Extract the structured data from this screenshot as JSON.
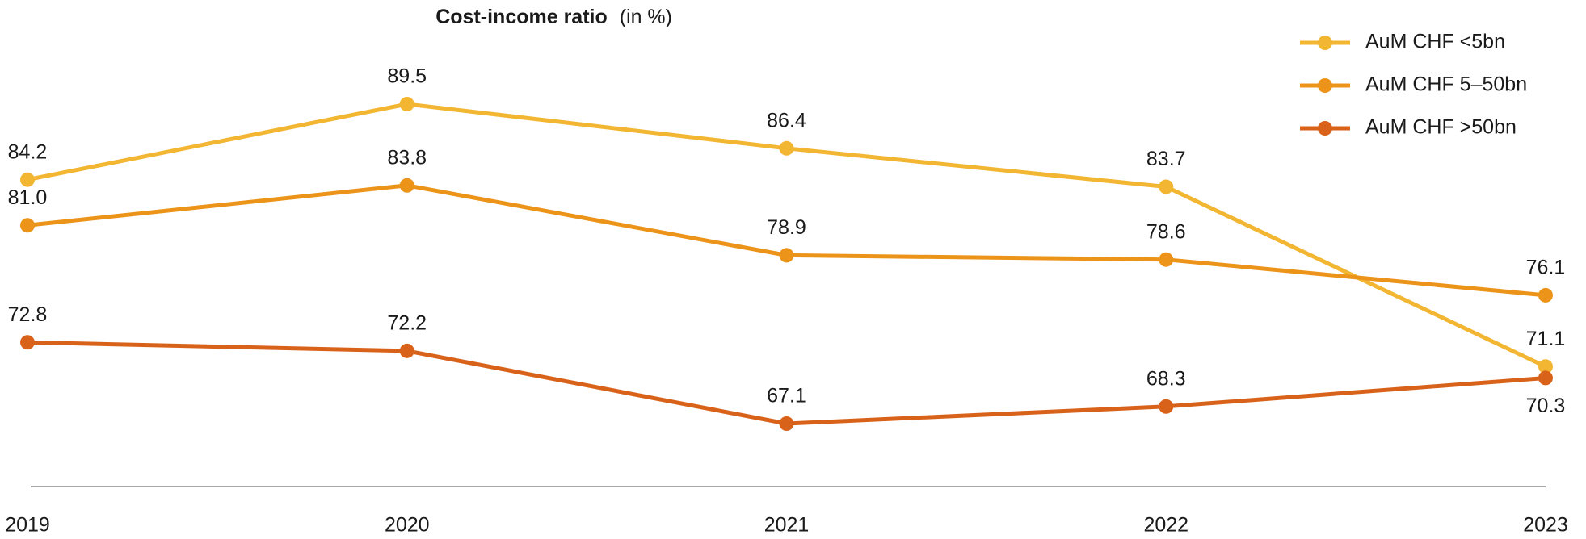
{
  "chart_data": {
    "type": "line",
    "title": "Cost-income ratio",
    "subtitle": "(in %)",
    "categories": [
      "2019",
      "2020",
      "2021",
      "2022",
      "2023"
    ],
    "series": [
      {
        "name": "AuM CHF <5bn",
        "color": "#f2b632",
        "values": [
          84.2,
          89.5,
          86.4,
          83.7,
          71.1
        ]
      },
      {
        "name": "AuM CHF 5–50bn",
        "color": "#ec9419",
        "values": [
          81.0,
          83.8,
          78.9,
          78.6,
          76.1
        ],
        "value_labels": [
          "81.0",
          "83.8",
          "78.9",
          "78.6",
          "76.1"
        ]
      },
      {
        "name": "AuM CHF >50bn",
        "color": "#d9621a",
        "values": [
          72.8,
          72.2,
          67.1,
          68.3,
          70.3
        ]
      }
    ],
    "legend": "top-right"
  }
}
